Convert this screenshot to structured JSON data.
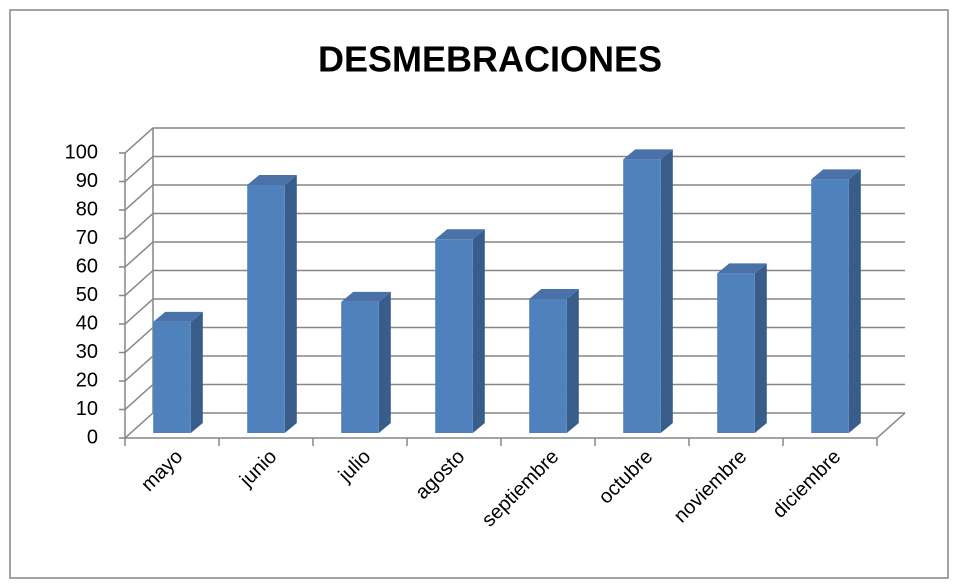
{
  "chart_data": {
    "type": "bar3d",
    "title": "DESMEBRACIONES",
    "categories": [
      "mayo",
      "junio",
      "julio",
      "agosto",
      "septiembre",
      "octubre",
      "noviembre",
      "diciembre"
    ],
    "values": [
      39,
      87,
      46,
      68,
      47,
      96,
      56,
      89
    ],
    "color": "#4f81bd",
    "ylim": [
      0,
      100
    ],
    "yticks": [
      0,
      10,
      20,
      30,
      40,
      50,
      60,
      70,
      80,
      90,
      100
    ],
    "grid": true
  }
}
